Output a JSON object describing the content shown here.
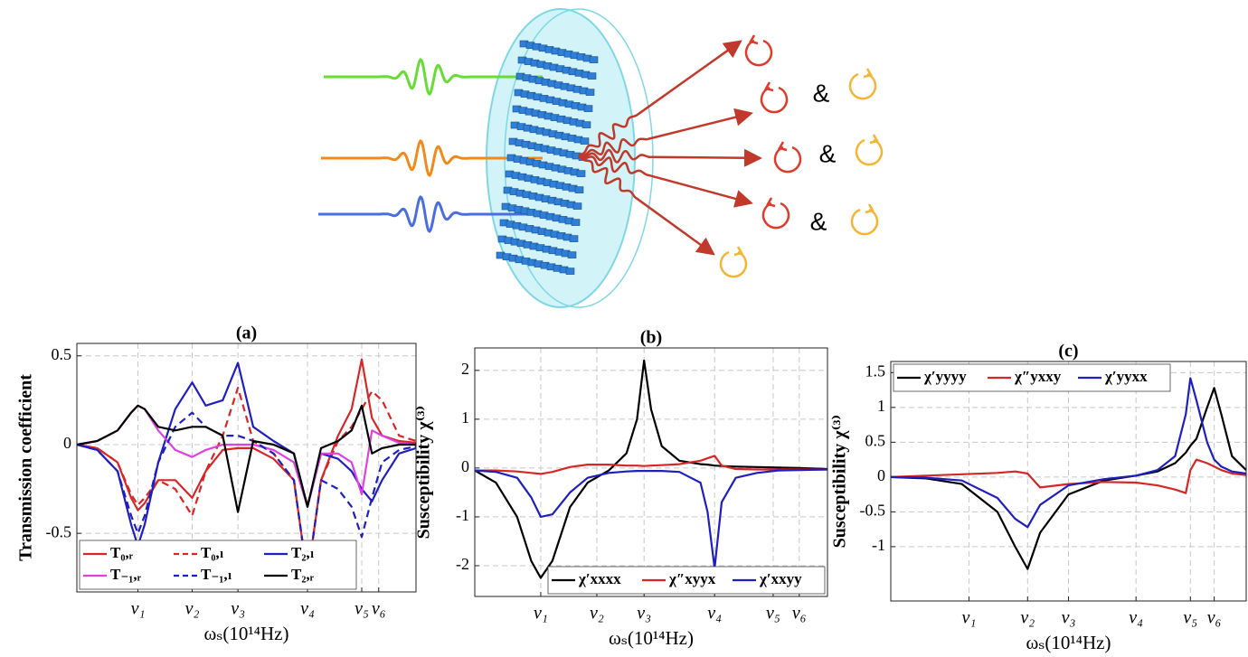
{
  "diagram": {
    "labels": [
      "&",
      "&",
      "&"
    ]
  },
  "chart_data": [
    {
      "type": "line",
      "title": "(a)",
      "xlabel": "ωₛ(10¹⁴Hz)",
      "ylabel": "Transmission coefficient",
      "x": [
        0,
        6,
        12,
        16,
        18,
        20,
        24,
        29,
        34,
        38,
        43,
        47.5,
        52,
        58,
        64,
        68,
        72,
        77,
        81,
        84,
        87,
        90,
        95,
        100
      ],
      "xlim": [
        0,
        100
      ],
      "xticks": [
        {
          "value": 18,
          "label": "ν₁"
        },
        {
          "value": 34,
          "label": "ν₂"
        },
        {
          "value": 47.5,
          "label": "ν₃"
        },
        {
          "value": 68,
          "label": "ν₄"
        },
        {
          "value": 84,
          "label": "ν₅"
        },
        {
          "value": 89,
          "label": "ν₆"
        }
      ],
      "ylim": [
        -0.83,
        0.57
      ],
      "yticks": [
        -0.5,
        0,
        0.5
      ],
      "grid": true,
      "legend": "lower left",
      "legend_ncol": 3,
      "series": [
        {
          "name": "T₀,ᵣ",
          "color": "#d62728",
          "linestyle": "solid",
          "values": [
            0,
            -0.02,
            -0.1,
            -0.3,
            -0.37,
            -0.33,
            -0.2,
            -0.2,
            -0.3,
            -0.15,
            -0.03,
            -0.02,
            -0.02,
            -0.08,
            -0.2,
            -0.75,
            -0.2,
            0.05,
            0.2,
            0.48,
            0.15,
            0.05,
            0.02,
            0.01
          ]
        },
        {
          "name": "T₀,ₗ",
          "color": "#d62728",
          "linestyle": "dashed",
          "values": [
            0,
            -0.02,
            -0.1,
            -0.28,
            -0.34,
            -0.3,
            -0.2,
            -0.25,
            -0.4,
            -0.15,
            0.05,
            0.32,
            0.02,
            -0.05,
            -0.2,
            -0.75,
            -0.2,
            0.02,
            0.1,
            0.2,
            0.3,
            0.25,
            0.05,
            0.02
          ]
        },
        {
          "name": "T₂,ₗ",
          "color": "#1f1fbf",
          "linestyle": "solid",
          "values": [
            0,
            -0.03,
            -0.15,
            -0.45,
            -0.57,
            -0.45,
            -0.1,
            0.2,
            0.35,
            0.22,
            0.25,
            0.46,
            0.1,
            0.02,
            -0.05,
            -0.35,
            -0.05,
            -0.08,
            -0.15,
            -0.25,
            -0.32,
            -0.2,
            -0.05,
            -0.02
          ]
        },
        {
          "name": "T₋₁,ᵣ",
          "color": "#e040e0",
          "linestyle": "solid",
          "values": [
            0,
            0.02,
            0.08,
            0.18,
            0.22,
            0.2,
            0.08,
            -0.03,
            -0.07,
            -0.03,
            0,
            0,
            0,
            -0.03,
            -0.1,
            -0.35,
            -0.05,
            -0.05,
            -0.1,
            -0.28,
            0.08,
            0.05,
            0.01,
            0
          ]
        },
        {
          "name": "T₋₁,ₗ",
          "color": "#1f1fbf",
          "linestyle": "dashed",
          "values": [
            0,
            -0.03,
            -0.15,
            -0.4,
            -0.5,
            -0.4,
            -0.1,
            0.1,
            0.18,
            0.1,
            0.05,
            0.05,
            0.02,
            -0.05,
            -0.2,
            -0.75,
            -0.2,
            -0.25,
            -0.35,
            -0.52,
            -0.3,
            -0.1,
            -0.03,
            -0.01
          ]
        },
        {
          "name": "T₂,ᵣ",
          "color": "#000000",
          "linestyle": "solid",
          "values": [
            0,
            0.02,
            0.08,
            0.18,
            0.22,
            0.2,
            0.1,
            0.08,
            0.1,
            0.1,
            0.05,
            -0.38,
            0.02,
            0,
            -0.05,
            -0.35,
            -0.02,
            0.02,
            0.08,
            0.22,
            -0.05,
            -0.02,
            0,
            0
          ]
        }
      ]
    },
    {
      "type": "line",
      "title": "(b)",
      "xlabel": "ωₛ(10¹⁴Hz)",
      "ylabel": "Susceptibility χ⁽³⁾",
      "x": [
        0,
        6,
        12,
        16,
        18.7,
        22,
        27,
        32,
        38,
        43,
        46,
        48,
        50,
        53,
        58,
        64,
        66,
        68,
        70,
        74,
        80,
        86,
        92,
        100
      ],
      "xlim": [
        0,
        100
      ],
      "xticks": [
        {
          "value": 18.7,
          "label": "ν₁"
        },
        {
          "value": 34.6,
          "label": "ν₂"
        },
        {
          "value": 48,
          "label": "ν₃"
        },
        {
          "value": 68,
          "label": "ν₄"
        },
        {
          "value": 84.6,
          "label": "ν₅"
        },
        {
          "value": 92,
          "label": "ν₆"
        }
      ],
      "ylim": [
        -2.63,
        2.46
      ],
      "yticks": [
        -2,
        -1,
        0,
        1,
        2
      ],
      "grid": true,
      "legend": "lower right",
      "legend_ncol": 3,
      "series": [
        {
          "name": "χ′xxxx",
          "color": "#000000",
          "linestyle": "solid",
          "values": [
            -0.05,
            -0.3,
            -1.0,
            -1.9,
            -2.25,
            -1.9,
            -0.8,
            -0.3,
            -0.05,
            0.3,
            1.0,
            2.2,
            1.2,
            0.45,
            0.15,
            0.08,
            0.07,
            0.05,
            0.04,
            0.03,
            0.02,
            0.01,
            0,
            -0.02
          ]
        },
        {
          "name": "χ″xyyx",
          "color": "#d62728",
          "linestyle": "solid",
          "values": [
            -0.05,
            -0.05,
            -0.07,
            -0.1,
            -0.12,
            -0.08,
            0.02,
            0.07,
            0.07,
            0.05,
            0.05,
            0.04,
            0.05,
            0.06,
            0.08,
            0.15,
            0.2,
            0.25,
            0.05,
            -0.02,
            -0.03,
            -0.03,
            -0.03,
            -0.03
          ]
        },
        {
          "name": "χ′xxyy",
          "color": "#1f1fbf",
          "linestyle": "solid",
          "values": [
            -0.05,
            -0.08,
            -0.2,
            -0.6,
            -1.0,
            -0.95,
            -0.5,
            -0.2,
            -0.1,
            -0.07,
            -0.06,
            -0.06,
            -0.06,
            -0.06,
            -0.08,
            -0.3,
            -0.9,
            -2.05,
            -0.7,
            -0.2,
            -0.1,
            -0.05,
            -0.04,
            -0.03
          ]
        }
      ]
    },
    {
      "type": "line",
      "title": "(c)",
      "xlabel": "ωₛ(10¹⁴Hz)",
      "ylabel": "Susceptibility χ⁽³⁾",
      "x": [
        0,
        10,
        20,
        30,
        35,
        38.5,
        42,
        50,
        60,
        69,
        75,
        80,
        83,
        84.3,
        86,
        89,
        91,
        93,
        96,
        100
      ],
      "xlim": [
        0,
        100
      ],
      "xticks": [
        {
          "value": 22,
          "label": "ν₁"
        },
        {
          "value": 38.5,
          "label": "ν₂"
        },
        {
          "value": 50,
          "label": "ν₃"
        },
        {
          "value": 69,
          "label": "ν₄"
        },
        {
          "value": 84.3,
          "label": "ν₅"
        },
        {
          "value": 91,
          "label": "ν₆"
        }
      ],
      "ylim": [
        -1.78,
        1.66
      ],
      "yticks": [
        -1,
        -0.5,
        0,
        0.5,
        1,
        1.5
      ],
      "grid": true,
      "legend": "upper left",
      "legend_ncol": 3,
      "series": [
        {
          "name": "χ′yyyy",
          "color": "#000000",
          "linestyle": "solid",
          "values": [
            0,
            -0.02,
            -0.1,
            -0.5,
            -1.0,
            -1.32,
            -0.8,
            -0.25,
            -0.05,
            0.02,
            0.08,
            0.2,
            0.35,
            0.45,
            0.55,
            1.0,
            1.28,
            0.9,
            0.3,
            0.1
          ]
        },
        {
          "name": "χ″yxxy",
          "color": "#d62728",
          "linestyle": "solid",
          "values": [
            0,
            0.02,
            0.04,
            0.06,
            0.08,
            0.05,
            -0.15,
            -0.1,
            -0.07,
            -0.08,
            -0.12,
            -0.18,
            -0.23,
            0.1,
            0.25,
            0.2,
            0.15,
            0.1,
            0.05,
            0.03
          ]
        },
        {
          "name": "χ′yyxx",
          "color": "#1f1fbf",
          "linestyle": "solid",
          "values": [
            0,
            -0.01,
            -0.05,
            -0.3,
            -0.6,
            -0.72,
            -0.4,
            -0.12,
            -0.03,
            0.02,
            0.1,
            0.3,
            0.9,
            1.42,
            1.1,
            0.5,
            0.25,
            0.15,
            0.08,
            0.05
          ]
        }
      ]
    }
  ]
}
